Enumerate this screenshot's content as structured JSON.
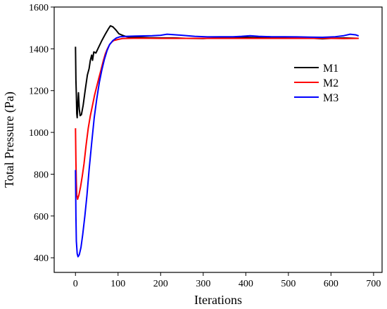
{
  "chart_data": {
    "type": "line",
    "title": "",
    "xlabel": "Iterations",
    "ylabel": "Total Pressure (Pa)",
    "xlim": [
      -50,
      720
    ],
    "ylim": [
      330,
      1600
    ],
    "xticks": [
      0,
      100,
      200,
      300,
      400,
      500,
      600,
      700
    ],
    "yticks": [
      400,
      600,
      800,
      1000,
      1200,
      1400,
      1600
    ],
    "grid": false,
    "legend_position": "right",
    "series": [
      {
        "name": "M1",
        "color": "#000000",
        "points": [
          [
            0,
            1410
          ],
          [
            1,
            1250
          ],
          [
            2,
            1180
          ],
          [
            3,
            1090
          ],
          [
            4,
            1070
          ],
          [
            5,
            1120
          ],
          [
            7,
            1190
          ],
          [
            9,
            1110
          ],
          [
            11,
            1080
          ],
          [
            14,
            1085
          ],
          [
            18,
            1130
          ],
          [
            23,
            1205
          ],
          [
            28,
            1275
          ],
          [
            32,
            1305
          ],
          [
            35,
            1345
          ],
          [
            38,
            1370
          ],
          [
            40,
            1345
          ],
          [
            43,
            1385
          ],
          [
            48,
            1380
          ],
          [
            55,
            1410
          ],
          [
            62,
            1440
          ],
          [
            70,
            1470
          ],
          [
            77,
            1495
          ],
          [
            82,
            1510
          ],
          [
            88,
            1505
          ],
          [
            95,
            1490
          ],
          [
            102,
            1472
          ],
          [
            110,
            1465
          ],
          [
            120,
            1458
          ],
          [
            135,
            1455
          ],
          [
            150,
            1455
          ],
          [
            175,
            1453
          ],
          [
            200,
            1452
          ],
          [
            230,
            1452
          ],
          [
            260,
            1450
          ],
          [
            300,
            1449
          ],
          [
            330,
            1452
          ],
          [
            370,
            1455
          ],
          [
            400,
            1455
          ],
          [
            440,
            1453
          ],
          [
            480,
            1452
          ],
          [
            520,
            1451
          ],
          [
            560,
            1450
          ],
          [
            580,
            1448
          ],
          [
            600,
            1450
          ],
          [
            630,
            1452
          ],
          [
            665,
            1450
          ]
        ]
      },
      {
        "name": "M2",
        "color": "#ff0000",
        "points": [
          [
            0,
            1020
          ],
          [
            1,
            860
          ],
          [
            2,
            760
          ],
          [
            3,
            700
          ],
          [
            5,
            680
          ],
          [
            8,
            700
          ],
          [
            12,
            740
          ],
          [
            16,
            790
          ],
          [
            20,
            850
          ],
          [
            25,
            940
          ],
          [
            30,
            1020
          ],
          [
            35,
            1080
          ],
          [
            40,
            1130
          ],
          [
            45,
            1180
          ],
          [
            50,
            1220
          ],
          [
            55,
            1260
          ],
          [
            60,
            1300
          ],
          [
            65,
            1340
          ],
          [
            70,
            1375
          ],
          [
            75,
            1400
          ],
          [
            80,
            1420
          ],
          [
            85,
            1432
          ],
          [
            90,
            1440
          ],
          [
            100,
            1445
          ],
          [
            110,
            1449
          ],
          [
            125,
            1450
          ],
          [
            150,
            1451
          ],
          [
            200,
            1450
          ],
          [
            250,
            1450
          ],
          [
            300,
            1450
          ],
          [
            350,
            1450
          ],
          [
            400,
            1450
          ],
          [
            450,
            1450
          ],
          [
            500,
            1450
          ],
          [
            550,
            1450
          ],
          [
            600,
            1450
          ],
          [
            630,
            1449
          ],
          [
            665,
            1450
          ]
        ]
      },
      {
        "name": "M3",
        "color": "#0000ff",
        "points": [
          [
            0,
            820
          ],
          [
            1,
            600
          ],
          [
            2,
            480
          ],
          [
            4,
            420
          ],
          [
            6,
            405
          ],
          [
            9,
            415
          ],
          [
            13,
            450
          ],
          [
            17,
            510
          ],
          [
            22,
            600
          ],
          [
            27,
            700
          ],
          [
            32,
            820
          ],
          [
            38,
            950
          ],
          [
            44,
            1070
          ],
          [
            50,
            1160
          ],
          [
            56,
            1240
          ],
          [
            62,
            1300
          ],
          [
            68,
            1350
          ],
          [
            74,
            1390
          ],
          [
            80,
            1420
          ],
          [
            88,
            1440
          ],
          [
            96,
            1452
          ],
          [
            105,
            1458
          ],
          [
            120,
            1460
          ],
          [
            140,
            1461
          ],
          [
            160,
            1462
          ],
          [
            180,
            1463
          ],
          [
            200,
            1465
          ],
          [
            215,
            1470
          ],
          [
            230,
            1468
          ],
          [
            250,
            1465
          ],
          [
            280,
            1460
          ],
          [
            310,
            1457
          ],
          [
            340,
            1458
          ],
          [
            370,
            1458
          ],
          [
            390,
            1460
          ],
          [
            410,
            1463
          ],
          [
            430,
            1460
          ],
          [
            460,
            1458
          ],
          [
            490,
            1458
          ],
          [
            520,
            1457
          ],
          [
            550,
            1456
          ],
          [
            580,
            1455
          ],
          [
            610,
            1458
          ],
          [
            630,
            1463
          ],
          [
            645,
            1470
          ],
          [
            658,
            1467
          ],
          [
            665,
            1462
          ]
        ]
      }
    ]
  }
}
